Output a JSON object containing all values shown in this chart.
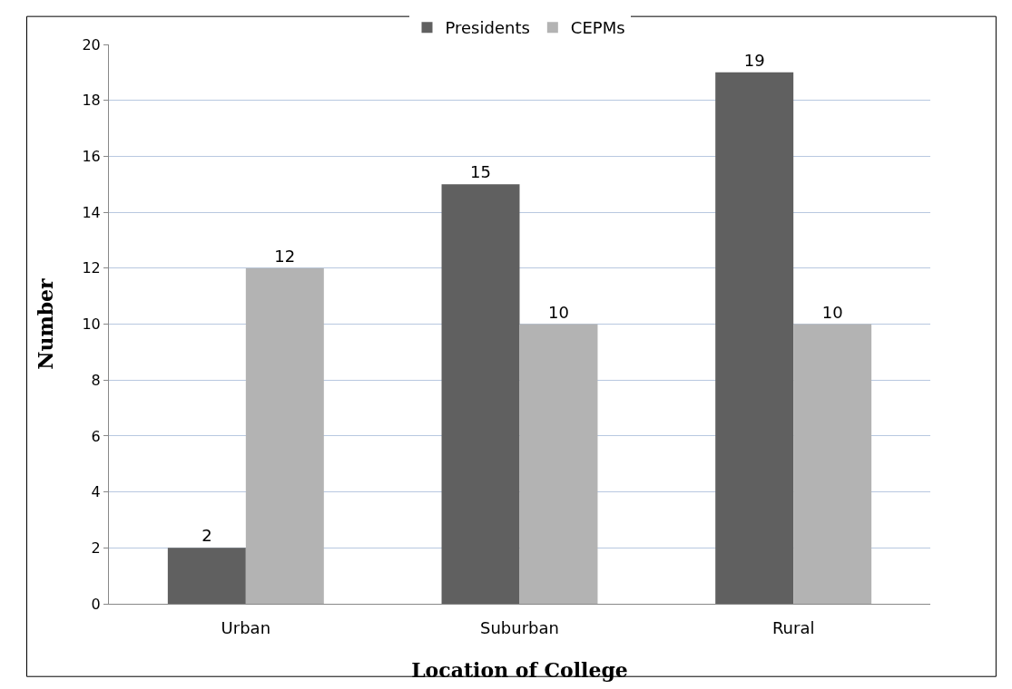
{
  "chart_data": {
    "type": "bar",
    "xlabel": "Location of College",
    "ylabel": "Number",
    "categories": [
      "Urban",
      "Suburban",
      "Rural"
    ],
    "series": [
      {
        "name": "Presidents",
        "color": "#606060",
        "values": [
          2,
          15,
          19
        ]
      },
      {
        "name": "CEPMs",
        "color": "#b3b3b3",
        "values": [
          12,
          10,
          10
        ]
      }
    ],
    "ylim": [
      0,
      20
    ],
    "yticks": [
      0,
      2,
      4,
      6,
      8,
      10,
      12,
      14,
      16,
      18,
      20
    ],
    "grid": "y",
    "legend": "top",
    "data_labels": true
  }
}
